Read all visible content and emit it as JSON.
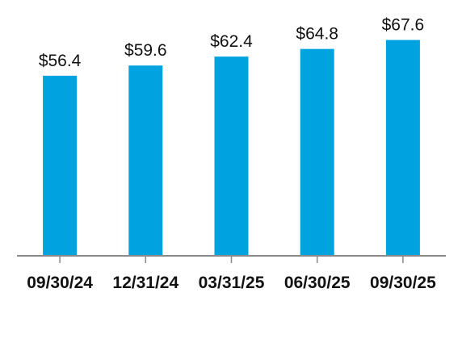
{
  "chart_data": {
    "type": "bar",
    "categories": [
      "09/30/24",
      "12/31/24",
      "03/31/25",
      "06/30/25",
      "09/30/25"
    ],
    "values": [
      56.4,
      59.6,
      62.4,
      64.8,
      67.6
    ],
    "data_labels": [
      "$56.4",
      "$59.6",
      "$62.4",
      "$64.8",
      "$67.6"
    ],
    "title": "",
    "xlabel": "",
    "ylabel": "",
    "ylim": [
      0,
      77.6
    ],
    "grid": false,
    "legend": "none",
    "colors": {
      "bar": "#00A3E0",
      "axis": "#8a8a8a",
      "text": "#111111"
    }
  }
}
